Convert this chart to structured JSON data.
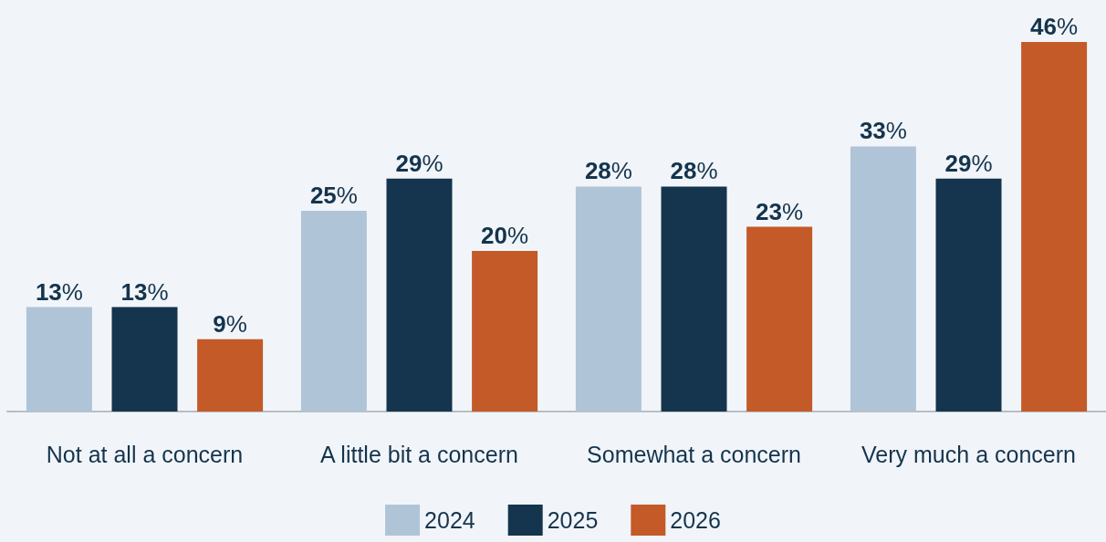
{
  "chart_data": {
    "type": "bar",
    "categories": [
      "Not at all a concern",
      "A little bit a concern",
      "Somewhat a concern",
      "Very much a concern"
    ],
    "series": [
      {
        "name": "2024",
        "color": "#b0c4d8",
        "values": [
          13,
          25,
          28,
          33
        ],
        "value_labels": [
          "13%",
          "25%",
          "28%",
          "33%"
        ]
      },
      {
        "name": "2025",
        "color": "#15344d",
        "values": [
          13,
          29,
          28,
          29
        ],
        "value_labels": [
          "13%",
          "29%",
          "28%",
          "29%"
        ]
      },
      {
        "name": "2026",
        "color": "#c45a27",
        "values": [
          9,
          20,
          23,
          46
        ],
        "value_labels": [
          "9%",
          "20%",
          "23%",
          "46%"
        ]
      }
    ],
    "legend": "bottom"
  }
}
